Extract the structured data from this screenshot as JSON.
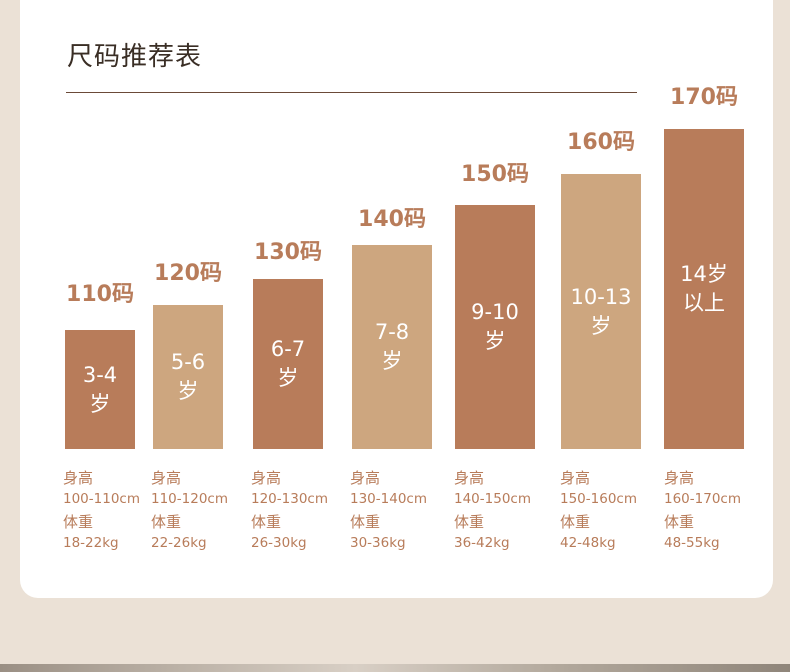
{
  "title": "尺码推荐表",
  "colors": {
    "dark": "#b87c5a",
    "light": "#cda67f",
    "text": "#b87c5a",
    "background": "#ebe1d6"
  },
  "sizes": [
    {
      "label": "110码",
      "age_line1": "3-4",
      "age_line2": "岁",
      "height_label": "身高",
      "height": "100-110cm",
      "weight_label": "体重",
      "weight": "18-22kg",
      "tone": "dark"
    },
    {
      "label": "120码",
      "age_line1": "5-6",
      "age_line2": "岁",
      "height_label": "身高",
      "height": "110-120cm",
      "weight_label": "体重",
      "weight": "22-26kg",
      "tone": "light"
    },
    {
      "label": "130码",
      "age_line1": "6-7",
      "age_line2": "岁",
      "height_label": "身高",
      "height": "120-130cm",
      "weight_label": "体重",
      "weight": "26-30kg",
      "tone": "dark"
    },
    {
      "label": "140码",
      "age_line1": "7-8",
      "age_line2": "岁",
      "height_label": "身高",
      "height": "130-140cm",
      "weight_label": "体重",
      "weight": "30-36kg",
      "tone": "light"
    },
    {
      "label": "150码",
      "age_line1": "9-10",
      "age_line2": "岁",
      "height_label": "身高",
      "height": "140-150cm",
      "weight_label": "体重",
      "weight": "36-42kg",
      "tone": "dark"
    },
    {
      "label": "160码",
      "age_line1": "10-13",
      "age_line2": "岁",
      "height_label": "身高",
      "height": "150-160cm",
      "weight_label": "体重",
      "weight": "42-48kg",
      "tone": "light"
    },
    {
      "label": "170码",
      "age_line1": "14岁",
      "age_line2": "以上",
      "height_label": "身高",
      "height": "160-170cm",
      "weight_label": "体重",
      "weight": "48-55kg",
      "tone": "dark"
    }
  ]
}
